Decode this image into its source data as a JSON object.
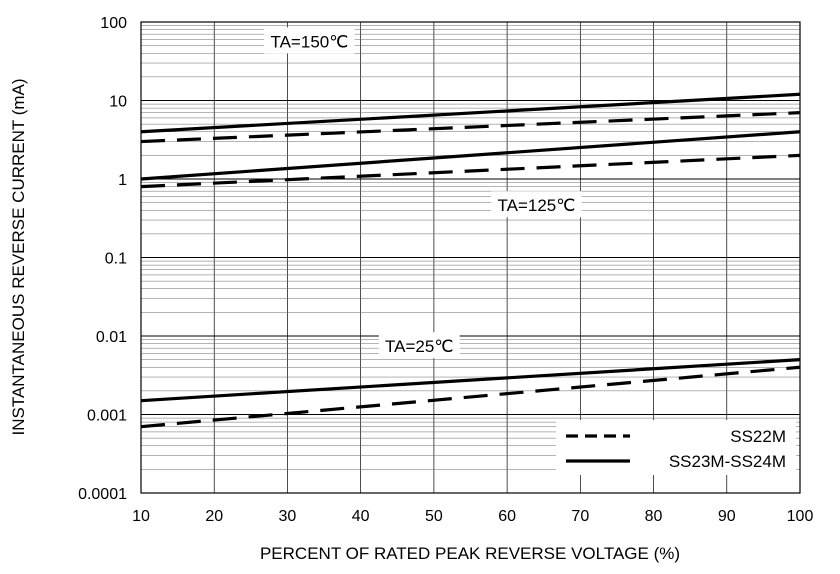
{
  "chart_data": {
    "type": "line",
    "xlabel": "PERCENT OF RATED PEAK REVERSE VOLTAGE (%)",
    "ylabel": "INSTANTANEOUS REVERSE CURRENT (mA)",
    "xlim": [
      10,
      100
    ],
    "ylim": [
      0.0001,
      100
    ],
    "yscale": "log",
    "grid": true,
    "x_ticks": [
      10,
      20,
      30,
      40,
      50,
      60,
      70,
      80,
      90,
      100
    ],
    "x_tick_labels": [
      "10",
      "20",
      "30",
      "40",
      "50",
      "60",
      "70",
      "80",
      "90",
      "100"
    ],
    "y_ticks": [
      0.0001,
      0.001,
      0.01,
      0.1,
      1,
      10,
      100
    ],
    "y_tick_labels": [
      "0.0001",
      "0.001",
      "0.01",
      "0.1",
      "1",
      "10",
      "100"
    ],
    "legend_position": "bottom-right",
    "legend": [
      {
        "label": "SS22M",
        "style": "dashed"
      },
      {
        "label": "SS23M-SS24M",
        "style": "solid"
      }
    ],
    "annotations": [
      {
        "text": "TA=150℃",
        "x": 33,
        "y": 55
      },
      {
        "text": "TA=125℃",
        "x": 64,
        "y": 0.45
      },
      {
        "text": "TA=25℃",
        "x": 48,
        "y": 0.0072
      }
    ],
    "series": [
      {
        "legend": "SS23M-SS24M",
        "condition": "TA=150℃",
        "style": "solid",
        "x": [
          10,
          100
        ],
        "y": [
          4.0,
          12.0
        ]
      },
      {
        "legend": "SS22M",
        "condition": "TA=150℃",
        "style": "dashed",
        "x": [
          10,
          100
        ],
        "y": [
          3.0,
          7.0
        ]
      },
      {
        "legend": "SS23M-SS24M",
        "condition": "TA=125℃",
        "style": "solid",
        "x": [
          10,
          100
        ],
        "y": [
          1.0,
          4.0
        ]
      },
      {
        "legend": "SS22M",
        "condition": "TA=125℃",
        "style": "dashed",
        "x": [
          10,
          100
        ],
        "y": [
          0.8,
          2.0
        ]
      },
      {
        "legend": "SS23M-SS24M",
        "condition": "TA=25℃",
        "style": "solid",
        "x": [
          10,
          100
        ],
        "y": [
          0.0015,
          0.005
        ]
      },
      {
        "legend": "SS22M",
        "condition": "TA=25℃",
        "style": "dashed",
        "x": [
          10,
          100
        ],
        "y": [
          0.0007,
          0.004
        ]
      }
    ]
  }
}
